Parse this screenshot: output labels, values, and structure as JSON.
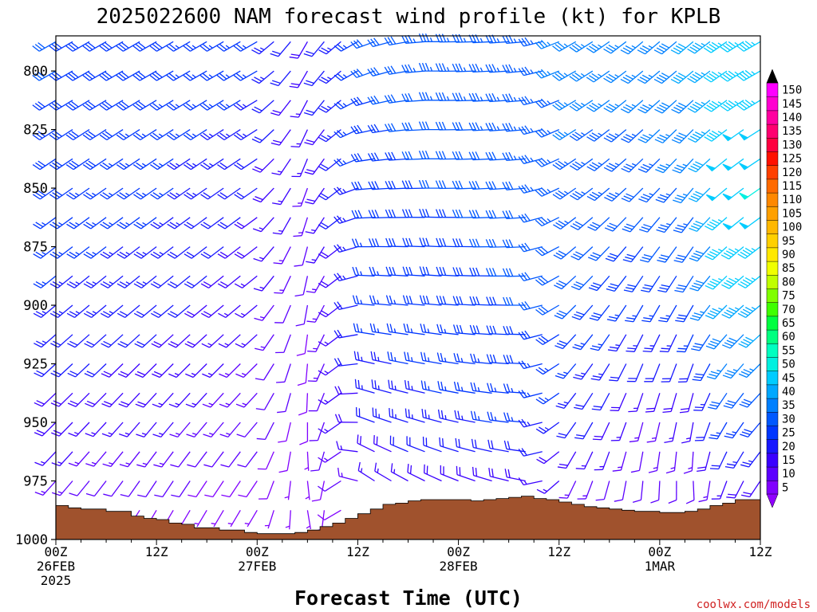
{
  "chart_data": {
    "type": "wind-barb-profile",
    "title": "2025022600 NAM forecast wind profile (kt) for KPLB",
    "xlabel": "Forecast Time (UTC)",
    "ylabel": "",
    "watermark": "coolwx.com/models",
    "y_ticks": [
      800,
      825,
      850,
      875,
      900,
      925,
      950,
      975,
      1000
    ],
    "ylim": [
      1000,
      785
    ],
    "x_ticks": [
      {
        "hour": 0,
        "lines": [
          "00Z",
          "26FEB",
          "2025"
        ]
      },
      {
        "hour": 12,
        "lines": [
          "12Z"
        ]
      },
      {
        "hour": 24,
        "lines": [
          "00Z",
          "27FEB"
        ]
      },
      {
        "hour": 36,
        "lines": [
          "12Z"
        ]
      },
      {
        "hour": 48,
        "lines": [
          "00Z",
          "28FEB"
        ]
      },
      {
        "hour": 60,
        "lines": [
          "12Z"
        ]
      },
      {
        "hour": 72,
        "lines": [
          "00Z",
          "1MAR"
        ]
      },
      {
        "hour": 84,
        "lines": [
          "12Z"
        ]
      }
    ],
    "xlim": [
      0,
      84
    ],
    "hour_step": 2,
    "level_step": 12.5,
    "level_top": 787.5,
    "surface_pressure": [
      985.5,
      986.5,
      987,
      987,
      988,
      988,
      990,
      991,
      991.5,
      993,
      993.5,
      995,
      995,
      996,
      996,
      997,
      997.5,
      997.5,
      997.5,
      997,
      996,
      994.5,
      993,
      991,
      989,
      987,
      985,
      984.5,
      983.5,
      983,
      983,
      983,
      983,
      983.5,
      983,
      982.5,
      982,
      981.5,
      982.5,
      983,
      984,
      985,
      986,
      986.5,
      987,
      987.5,
      988,
      988,
      988.5,
      988.5,
      988,
      987,
      985.5,
      984.5,
      983,
      983
    ],
    "wind_control": {
      "hours": [
        0,
        12,
        24,
        30,
        38,
        46,
        56,
        62,
        70,
        76,
        80,
        84
      ],
      "levels": [
        800,
        850,
        900,
        950,
        990
      ],
      "direction_deg": [
        [
          240,
          235,
          230,
          225,
          220
        ],
        [
          240,
          235,
          230,
          220,
          210
        ],
        [
          240,
          235,
          230,
          220,
          210
        ],
        [
          210,
          200,
          190,
          180,
          170
        ],
        [
          250,
          265,
          275,
          290,
          310
        ],
        [
          270,
          270,
          275,
          285,
          300
        ],
        [
          265,
          265,
          270,
          275,
          285
        ],
        [
          240,
          235,
          225,
          215,
          200
        ],
        [
          230,
          225,
          210,
          195,
          180
        ],
        [
          230,
          220,
          210,
          190,
          170
        ],
        [
          235,
          230,
          225,
          210,
          195
        ],
        [
          240,
          235,
          230,
          220,
          210
        ]
      ],
      "speed_kt": [
        [
          30,
          28,
          24,
          18,
          10
        ],
        [
          28,
          26,
          22,
          16,
          8
        ],
        [
          26,
          20,
          16,
          12,
          6
        ],
        [
          18,
          14,
          10,
          8,
          5
        ],
        [
          30,
          28,
          26,
          22,
          14
        ],
        [
          34,
          30,
          28,
          24,
          14
        ],
        [
          34,
          32,
          30,
          26,
          14
        ],
        [
          36,
          34,
          30,
          22,
          10
        ],
        [
          36,
          32,
          26,
          14,
          8
        ],
        [
          40,
          36,
          28,
          16,
          8
        ],
        [
          46,
          48,
          44,
          26,
          12
        ],
        [
          46,
          50,
          44,
          28,
          14
        ]
      ]
    },
    "colorbar": {
      "values": [
        5,
        10,
        15,
        20,
        25,
        30,
        35,
        40,
        45,
        50,
        55,
        60,
        65,
        70,
        75,
        80,
        85,
        90,
        95,
        100,
        105,
        110,
        115,
        120,
        125,
        130,
        135,
        140,
        145,
        150
      ],
      "colors": [
        "#8000ff",
        "#5c00ff",
        "#3a00ff",
        "#1818ff",
        "#0036ff",
        "#0058ff",
        "#0080ff",
        "#00a8ff",
        "#00ccff",
        "#00f0e0",
        "#00ffc0",
        "#00ff80",
        "#00ff40",
        "#40ff00",
        "#80ff00",
        "#c0ff00",
        "#f0ff00",
        "#ffe800",
        "#ffd000",
        "#ffb800",
        "#ffa000",
        "#ff8800",
        "#ff6a00",
        "#ff4000",
        "#ff1000",
        "#ff0040",
        "#ff0070",
        "#ff00a0",
        "#ff00d0",
        "#ff00ff"
      ],
      "min_arrow_color": "#9000ff",
      "max_arrow_color": "#000000"
    },
    "terrain_color": "#a0522d",
    "grid": false
  }
}
